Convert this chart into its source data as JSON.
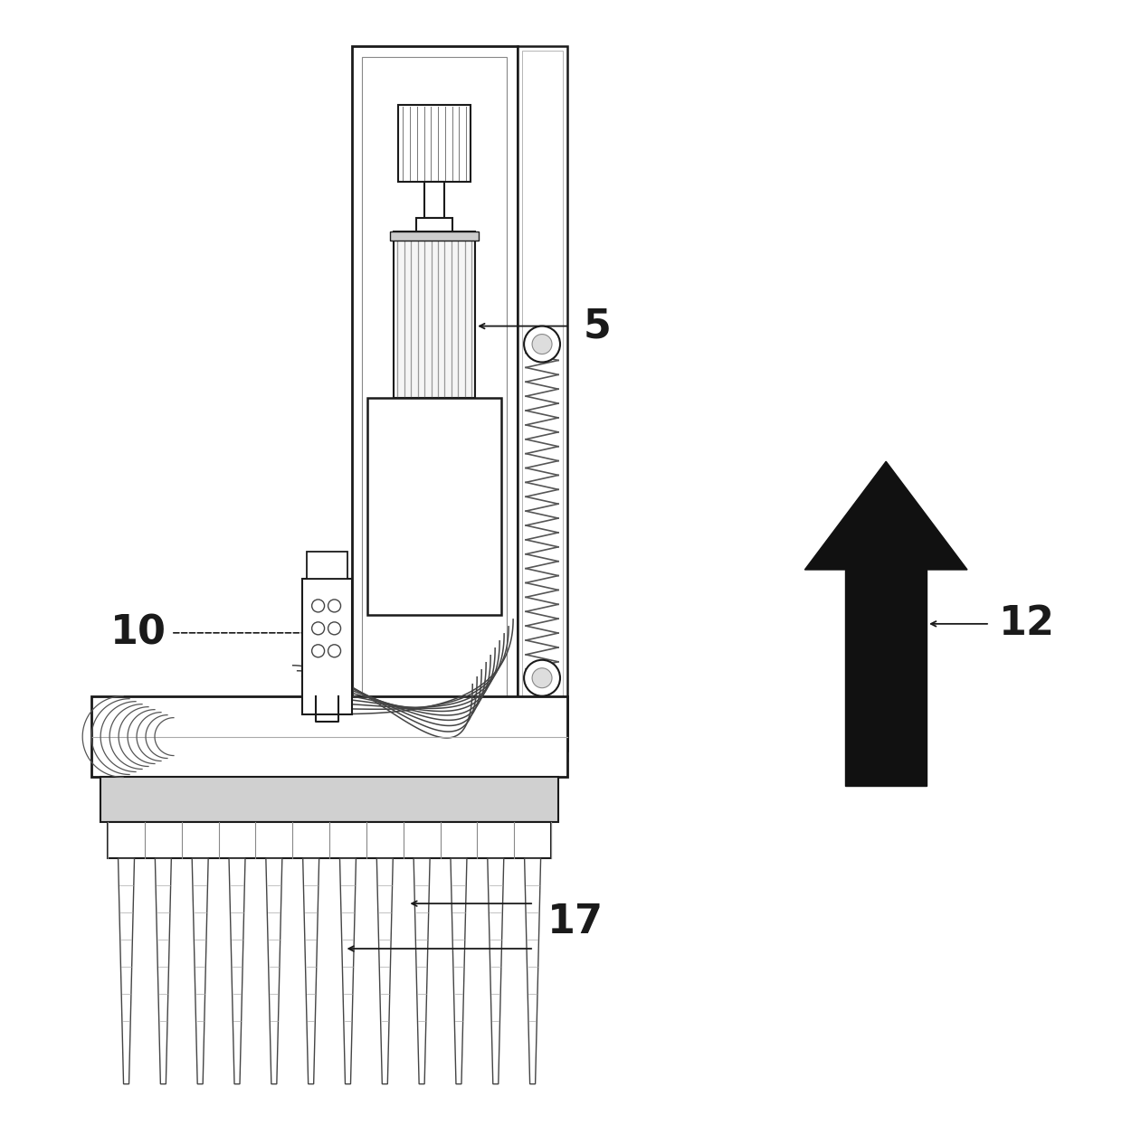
{
  "bg_color": "#ffffff",
  "line_color": "#1a1a1a",
  "label_5": "5",
  "label_10": "10",
  "label_12": "12",
  "label_17": "17",
  "label_fontsize": 32,
  "figsize": [
    12.4,
    12.54
  ],
  "dpi": 100
}
